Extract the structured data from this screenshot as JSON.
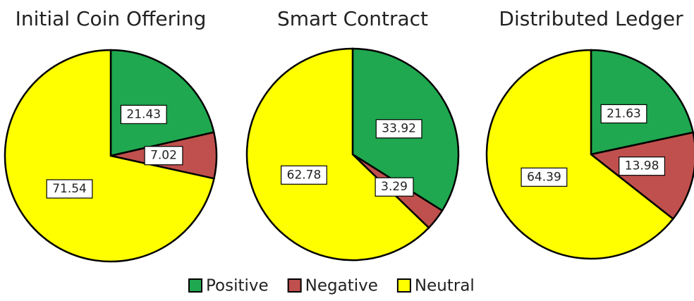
{
  "chart_data": [
    {
      "type": "pie",
      "title": "Initial Coin Offering",
      "categories": [
        "Positive",
        "Negative",
        "Neutral"
      ],
      "values": [
        21.43,
        7.02,
        71.54
      ],
      "colors": [
        "#1fa84f",
        "#c0504d",
        "#ffff00"
      ]
    },
    {
      "type": "pie",
      "title": "Smart Contract",
      "categories": [
        "Positive",
        "Negative",
        "Neutral"
      ],
      "values": [
        33.92,
        3.29,
        62.78
      ],
      "colors": [
        "#1fa84f",
        "#c0504d",
        "#ffff00"
      ]
    },
    {
      "type": "pie",
      "title": "Distributed Ledger",
      "categories": [
        "Positive",
        "Negative",
        "Neutral"
      ],
      "values": [
        21.63,
        13.98,
        64.39
      ],
      "colors": [
        "#1fa84f",
        "#c0504d",
        "#ffff00"
      ]
    }
  ]
}
